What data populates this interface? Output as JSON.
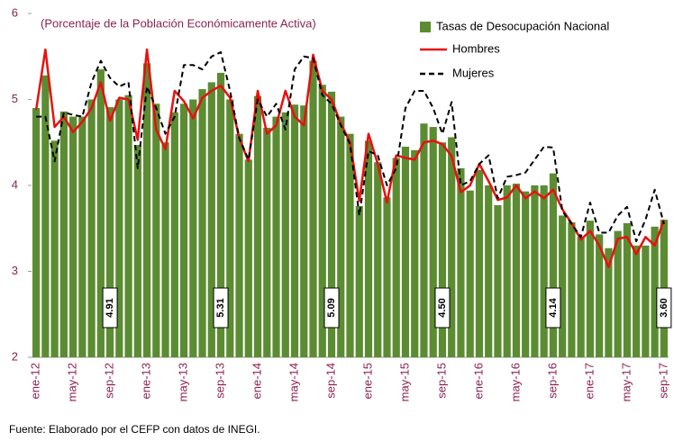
{
  "chart_data": {
    "type": "bar",
    "title": "(Porcentaje de la Población Económicamente Activa)",
    "source": "Fuente: Elaborado por el CEFP con datos de INEGI.",
    "categories": [
      "ene-12",
      null,
      null,
      null,
      "may-12",
      null,
      null,
      null,
      "sep-12",
      null,
      null,
      null,
      "ene-13",
      null,
      null,
      null,
      "may-13",
      null,
      null,
      null,
      "sep-13",
      null,
      null,
      null,
      "ene-14",
      null,
      null,
      null,
      "may-14",
      null,
      null,
      null,
      "sep-14",
      null,
      null,
      null,
      "ene-15",
      null,
      null,
      null,
      "may-15",
      null,
      null,
      null,
      "sep-15",
      null,
      null,
      null,
      "ene-16",
      null,
      null,
      null,
      "may-16",
      null,
      null,
      null,
      "sep-16",
      null,
      null,
      null,
      "ene-17",
      null,
      null,
      null,
      "may-17",
      null,
      null,
      null,
      "sep-17"
    ],
    "series": [
      {
        "name": "Tasas de Desocupación Nacional",
        "type": "bar",
        "color": "#5b8c32",
        "values": [
          4.9,
          5.28,
          4.52,
          4.86,
          4.8,
          4.8,
          5.0,
          5.35,
          4.91,
          5.0,
          5.05,
          4.47,
          5.42,
          4.95,
          4.5,
          4.85,
          4.95,
          5.0,
          5.12,
          5.2,
          5.31,
          5.0,
          4.6,
          4.3,
          5.04,
          4.67,
          4.8,
          4.85,
          4.94,
          4.93,
          5.45,
          5.17,
          5.09,
          4.8,
          4.6,
          3.76,
          4.52,
          4.27,
          3.86,
          4.32,
          4.45,
          4.41,
          4.72,
          4.68,
          4.5,
          4.56,
          4.2,
          3.94,
          4.18,
          4.0,
          3.77,
          4.0,
          4.02,
          3.93,
          4.0,
          4.0,
          4.14,
          3.65,
          3.57,
          3.4,
          3.59,
          3.43,
          3.27,
          3.47,
          3.56,
          3.3,
          3.3,
          3.52,
          3.6
        ],
        "value_labels": [
          null,
          null,
          null,
          null,
          null,
          null,
          null,
          null,
          "4.91",
          null,
          null,
          null,
          null,
          null,
          null,
          null,
          null,
          null,
          null,
          null,
          "5.31",
          null,
          null,
          null,
          null,
          null,
          null,
          null,
          null,
          null,
          null,
          null,
          "5.09",
          null,
          null,
          null,
          null,
          null,
          null,
          null,
          null,
          null,
          null,
          null,
          "4.50",
          null,
          null,
          null,
          null,
          null,
          null,
          null,
          null,
          null,
          null,
          null,
          "4.14",
          null,
          null,
          null,
          null,
          null,
          null,
          null,
          null,
          null,
          null,
          null,
          "3.60"
        ]
      },
      {
        "name": "Hombres",
        "type": "line",
        "color": "#e8100f",
        "line_style": "solid",
        "values": [
          4.88,
          5.58,
          4.68,
          4.8,
          4.62,
          4.74,
          4.9,
          5.2,
          4.75,
          5.02,
          5.0,
          4.53,
          5.58,
          4.65,
          4.42,
          5.1,
          4.98,
          4.78,
          5.02,
          5.1,
          5.16,
          5.02,
          4.55,
          4.28,
          5.1,
          4.6,
          4.7,
          5.1,
          4.8,
          4.7,
          5.52,
          5.1,
          5.0,
          4.72,
          4.5,
          3.82,
          4.6,
          4.25,
          3.8,
          4.35,
          4.32,
          4.3,
          4.5,
          4.52,
          4.48,
          4.34,
          3.92,
          4.0,
          4.25,
          4.05,
          3.83,
          3.86,
          4.0,
          3.85,
          3.93,
          3.85,
          3.95,
          3.72,
          3.56,
          3.37,
          3.47,
          3.3,
          3.05,
          3.38,
          3.4,
          3.2,
          3.4,
          3.3,
          3.6
        ]
      },
      {
        "name": "Mujeres",
        "type": "line",
        "color": "#000000",
        "line_style": "dashed",
        "values": [
          4.8,
          4.8,
          4.28,
          4.85,
          4.82,
          4.8,
          5.2,
          5.45,
          5.25,
          5.15,
          5.2,
          4.2,
          5.15,
          4.9,
          4.6,
          4.8,
          5.4,
          5.4,
          5.35,
          5.5,
          5.55,
          5.1,
          4.55,
          4.3,
          5.0,
          4.8,
          4.95,
          4.65,
          5.35,
          5.5,
          5.48,
          5.05,
          4.95,
          4.7,
          4.48,
          3.65,
          4.4,
          4.35,
          4.0,
          4.2,
          4.9,
          5.1,
          5.1,
          4.9,
          4.6,
          4.97,
          4.0,
          4.05,
          4.25,
          4.35,
          3.85,
          4.1,
          4.12,
          4.15,
          4.3,
          4.45,
          4.44,
          3.7,
          3.55,
          3.4,
          3.8,
          3.45,
          3.45,
          3.65,
          3.75,
          3.35,
          3.6,
          3.95,
          3.55
        ]
      }
    ],
    "ylim": [
      2,
      6
    ],
    "yticks": [
      2,
      3,
      4,
      5,
      6
    ],
    "grid": false,
    "legend": "top-right"
  }
}
